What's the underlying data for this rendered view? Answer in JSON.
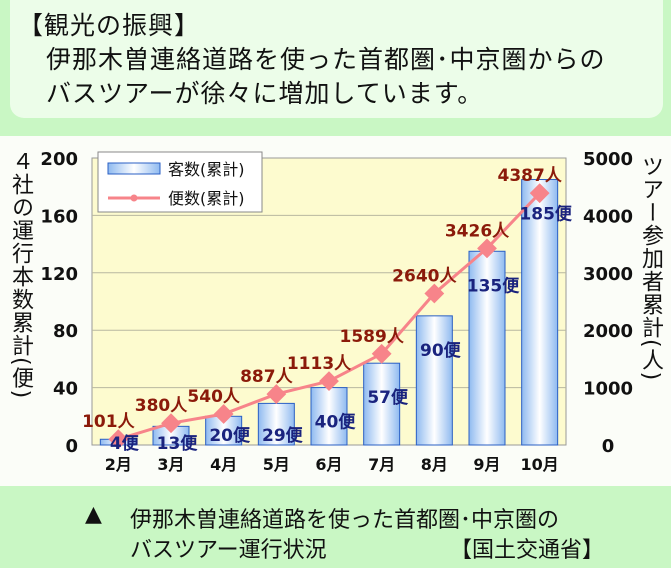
{
  "header": {
    "title": "【観光の振興】",
    "line1": "伊那木曽連絡道路を使った首都圏･中京圏からの",
    "line2": "バスツアーが徐々に増加しています。"
  },
  "caption": {
    "marker": "▲",
    "line1": "伊那木曽連絡道路を使った首都圏･中京圏の",
    "line2": "バスツアー運行状況",
    "source": "【国土交通省】"
  },
  "colors": {
    "bar": "#a9cdf5",
    "bar_edge": "#2a5fc4",
    "line": "#f7848a",
    "line_label": "#8b1a0a",
    "bar_label": "#1a237e",
    "plot_bg": "#fdfbcf"
  },
  "chart_data": {
    "type": "bar+line",
    "categories": [
      "2月",
      "3月",
      "4月",
      "5月",
      "6月",
      "7月",
      "8月",
      "9月",
      "10月"
    ],
    "series": [
      {
        "name": "客数(累計)",
        "type": "bar",
        "axis": "left",
        "values": [
          4,
          13,
          20,
          29,
          40,
          57,
          90,
          135,
          185
        ],
        "labels": [
          "4便",
          "13便",
          "20便",
          "29便",
          "40便",
          "57便",
          "90便",
          "135便",
          "185便"
        ]
      },
      {
        "name": "便数(累計)",
        "type": "line",
        "axis": "right",
        "values": [
          101,
          380,
          540,
          887,
          1113,
          1589,
          2640,
          3426,
          4387
        ],
        "labels": [
          "101人",
          "380人",
          "540人",
          "887人",
          "1113人",
          "1589人",
          "2640人",
          "3426人",
          "4387人"
        ]
      }
    ],
    "ylabel_left": "４社の運行本数累計(便)",
    "ylabel_right": "ツアー参加者累計(人)",
    "ylim_left": [
      0,
      200
    ],
    "yticks_left": [
      "0",
      "40",
      "80",
      "120",
      "160",
      "200"
    ],
    "ylim_right": [
      0,
      5000
    ],
    "yticks_right": [
      "0",
      "1000",
      "2000",
      "3000",
      "4000",
      "5000"
    ],
    "grid": true,
    "legend": "top-left"
  }
}
